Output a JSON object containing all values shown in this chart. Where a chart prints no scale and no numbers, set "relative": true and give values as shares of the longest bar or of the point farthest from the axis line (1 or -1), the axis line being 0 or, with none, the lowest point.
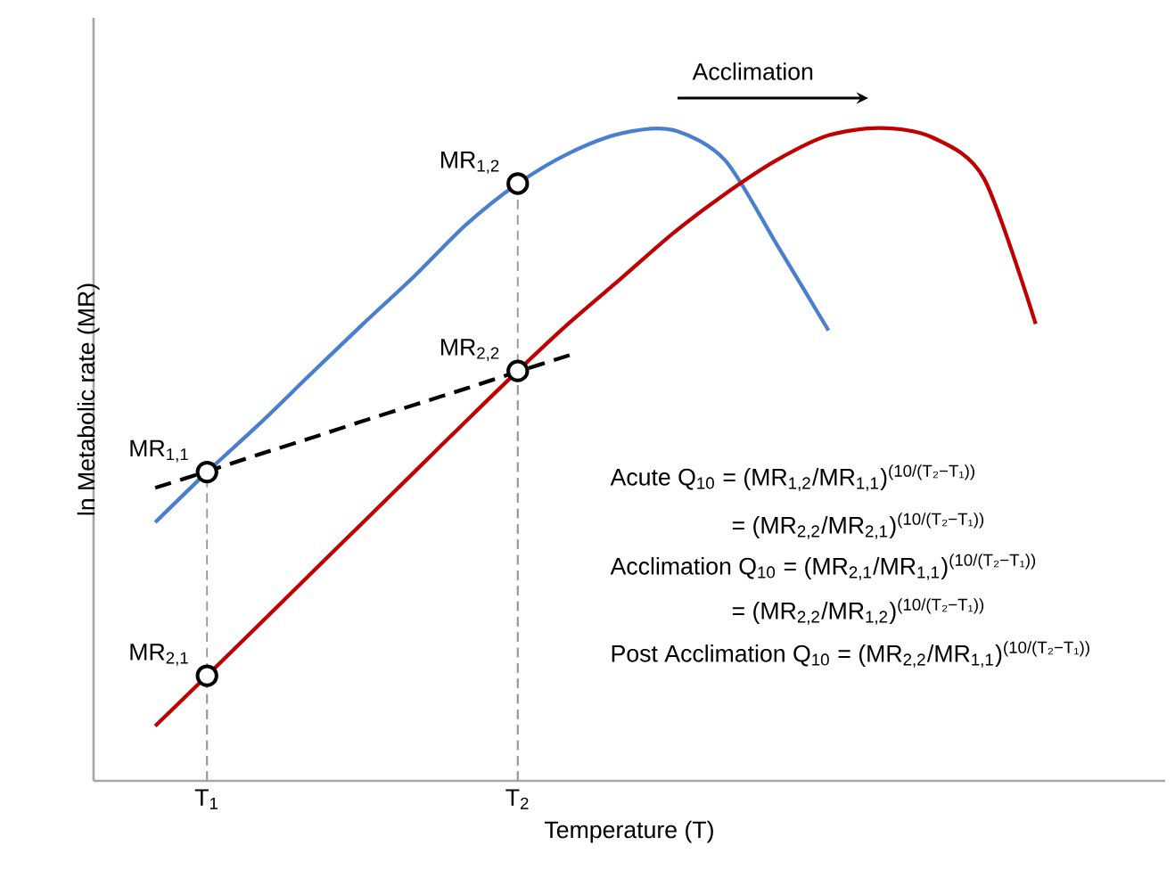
{
  "chart_data": {
    "type": "line",
    "relative": true,
    "xlabel": "Temperature (T)",
    "ylabel": "ln Metabolic rate (MR)",
    "categories": [
      null,
      null,
      "T$_{1}$",
      null,
      null,
      null,
      null,
      null,
      "T$_{2}$",
      null,
      null,
      null,
      null,
      null,
      null,
      null,
      null,
      null,
      null,
      null,
      null
    ],
    "tick_labels": "x",
    "series": [
      {
        "color": "#4a7fd0",
        "line_style": "solid",
        "marker": "none",
        "values": [
          null,
          0.396,
          0.473,
          0.546,
          0.623,
          0.699,
          0.773,
          0.852,
          0.915,
          0.962,
          0.992,
          0.997,
          0.951,
          0.822,
          0.69,
          null,
          null,
          null,
          null,
          null,
          null
        ]
      },
      {
        "color": "#c00000",
        "line_style": "solid",
        "marker": "none",
        "values": [
          null,
          0.084,
          0.161,
          0.239,
          0.317,
          0.395,
          0.473,
          0.551,
          0.628,
          0.702,
          0.77,
          0.839,
          0.899,
          0.951,
          0.989,
          1.0,
          0.986,
          0.923,
          0.7,
          null,
          null
        ]
      },
      {
        "color": "#000000",
        "line_style": "dashed",
        "marker": "none",
        "values": [
          null,
          0.449,
          0.474,
          0.5,
          0.525,
          0.551,
          0.576,
          0.601,
          0.627,
          0.652,
          null,
          null,
          null,
          null,
          null,
          null,
          null,
          null,
          null,
          null,
          null
        ]
      },
      {
        "type": "scatter",
        "color": "#000000",
        "marker": "circle",
        "values": [
          null,
          null,
          0.473,
          null,
          null,
          null,
          null,
          null,
          0.915,
          null,
          null,
          null,
          null,
          null,
          null,
          null,
          null,
          null,
          null,
          null,
          null
        ]
      },
      {
        "type": "scatter",
        "color": "#000000",
        "marker": "circle",
        "values": [
          null,
          null,
          0.161,
          null,
          null,
          null,
          null,
          null,
          0.628,
          null,
          null,
          null,
          null,
          null,
          null,
          null,
          null,
          null,
          null,
          null,
          null
        ]
      }
    ],
    "annotations": [
      {
        "text": "MR$_{1,1}$",
        "x": "T$_{1}$",
        "y": 0.473
      },
      {
        "text": "MR$_{1,2}$",
        "x": "T$_{2}$",
        "y": 0.915
      },
      {
        "text": "MR$_{2,2}$",
        "x": "T$_{2}$",
        "y": 0.628
      },
      {
        "text": "MR$_{2,1}$",
        "x": "T$_{1}$",
        "y": 0.161
      },
      "Acclimation",
      "Acute Q$_{10}$ = (MR$_{1,2}$/MR$_{1,1}$)$^{(10/(T₂−T₁))}$",
      "= (MR$_{2,2}$/MR$_{2,1}$)$^{(10/(T₂−T₁))}$",
      "Acclimation Q$_{10}$ = (MR$_{2,1}$/MR$_{1,1}$)$^{(10/(T₂−T₁))}$",
      "= (MR$_{2,2}$/MR$_{1,2}$)$^{(10/(T₂−T₁))}$",
      "Post Acclimation Q$_{10}$ = (MR$_{2,2}$/MR$_{1,1}$)$^{(10/(T₂−T₁))}$"
    ]
  }
}
